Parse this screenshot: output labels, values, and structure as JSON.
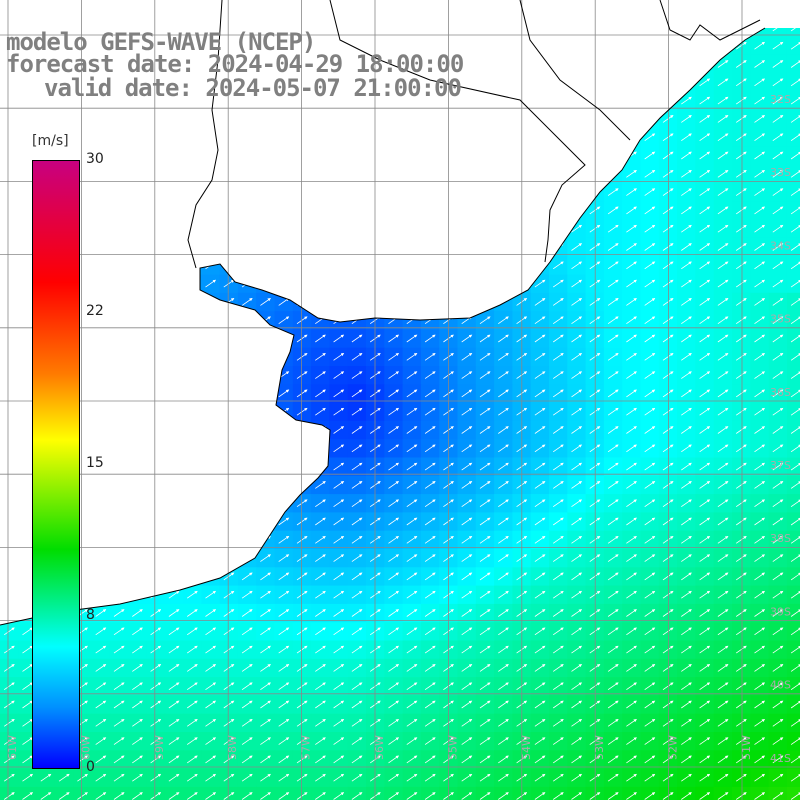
{
  "header": {
    "line1": "modelo GEFS-WAVE (NCEP)",
    "line2": "forecast date: 2024-04-29 18:00:00",
    "line3": "valid date: 2024-05-07 21:00:00"
  },
  "colorbar": {
    "unit": "[m/s]",
    "ticks": [
      "30",
      "22",
      "15",
      "8",
      "0"
    ],
    "colors": [
      "#c80080",
      "#ff0000",
      "#ff7a00",
      "#ffff00",
      "#00dd00",
      "#00ffff",
      "#0090ff",
      "#0000ff"
    ]
  },
  "map": {
    "field": "wind speed (m/s) with direction arrows",
    "land_color": "#ffffff",
    "grid_color": "#888888",
    "lat_labels": [
      "32S",
      "33S",
      "34S",
      "35S",
      "36S",
      "37S",
      "38S",
      "39S",
      "40S",
      "41S"
    ],
    "lon_labels": [
      "61W",
      "60W",
      "59W",
      "58W",
      "57W",
      "56W",
      "55W",
      "54W",
      "53W",
      "52W",
      "51W"
    ],
    "arrow_direction": "toward northeast"
  }
}
